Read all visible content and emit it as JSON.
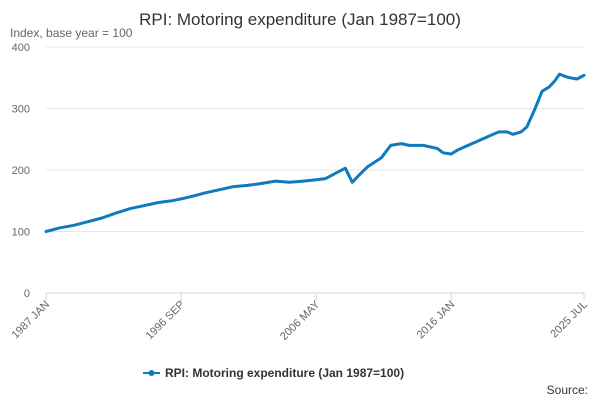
{
  "chart_data": {
    "type": "line",
    "title": "RPI: Motoring expenditure (Jan 1987=100)",
    "ylabel": "Index, base year = 100",
    "ylim": [
      0,
      400
    ],
    "yticks": [
      0,
      100,
      200,
      300,
      400
    ],
    "xlim": [
      "1987-01",
      "2025-07"
    ],
    "xtick_labels": [
      "1987 JAN",
      "1996 SEP",
      "2006 MAY",
      "2016 JAN",
      "2025 JUL"
    ],
    "xticks": [
      "1987-01",
      "1996-09",
      "2006-05",
      "2016-01",
      "2025-07"
    ],
    "grid": true,
    "legend_position": "bottom",
    "colors": {
      "series": "#0f7bbd",
      "grid": "#e6e6e6",
      "axis": "#ccd6eb"
    },
    "series": [
      {
        "name": "RPI: Motoring expenditure (Jan 1987=100)",
        "points": [
          [
            "1987-01",
            100
          ],
          [
            "1988-01",
            106
          ],
          [
            "1989-01",
            110
          ],
          [
            "1990-01",
            116
          ],
          [
            "1991-01",
            122
          ],
          [
            "1992-01",
            130
          ],
          [
            "1993-01",
            137
          ],
          [
            "1994-01",
            142
          ],
          [
            "1995-01",
            147
          ],
          [
            "1996-01",
            150
          ],
          [
            "1996-09",
            153
          ],
          [
            "1997-06",
            157
          ],
          [
            "1998-06",
            163
          ],
          [
            "1999-06",
            168
          ],
          [
            "2000-06",
            173
          ],
          [
            "2001-06",
            175
          ],
          [
            "2002-06",
            178
          ],
          [
            "2003-06",
            182
          ],
          [
            "2004-06",
            180
          ],
          [
            "2005-06",
            182
          ],
          [
            "2006-05",
            184
          ],
          [
            "2007-01",
            186
          ],
          [
            "2008-06",
            203
          ],
          [
            "2008-12",
            180
          ],
          [
            "2009-06",
            192
          ],
          [
            "2010-01",
            205
          ],
          [
            "2011-01",
            220
          ],
          [
            "2011-09",
            240
          ],
          [
            "2012-06",
            243
          ],
          [
            "2013-01",
            240
          ],
          [
            "2014-01",
            240
          ],
          [
            "2015-01",
            235
          ],
          [
            "2015-06",
            228
          ],
          [
            "2016-01",
            226
          ],
          [
            "2016-06",
            232
          ],
          [
            "2017-01",
            238
          ],
          [
            "2018-01",
            248
          ],
          [
            "2019-01",
            258
          ],
          [
            "2019-06",
            262
          ],
          [
            "2020-01",
            262
          ],
          [
            "2020-06",
            258
          ],
          [
            "2021-01",
            262
          ],
          [
            "2021-06",
            270
          ],
          [
            "2022-01",
            300
          ],
          [
            "2022-07",
            328
          ],
          [
            "2023-01",
            335
          ],
          [
            "2023-06",
            345
          ],
          [
            "2023-10",
            356
          ],
          [
            "2024-03",
            352
          ],
          [
            "2024-07",
            350
          ],
          [
            "2025-01",
            348
          ],
          [
            "2025-07",
            354
          ]
        ]
      }
    ]
  },
  "legend": {
    "label": "RPI: Motoring expenditure (Jan 1987=100)"
  },
  "footer": {
    "source_label": "Source:"
  }
}
